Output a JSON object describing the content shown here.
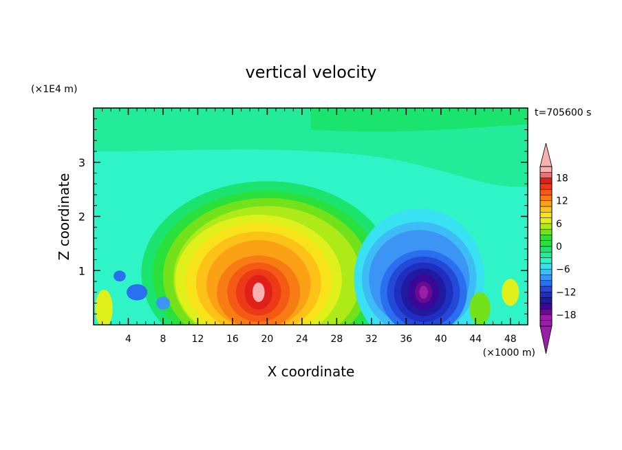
{
  "chart_data": {
    "type": "heatmap",
    "title": "vertical velocity",
    "xlabel": "X coordinate",
    "ylabel": "Z coordinate",
    "x_unit": "(×1000 m)",
    "y_unit": "(×1E4 m)",
    "time_label": "t=705600 s",
    "xlim": [
      0,
      50
    ],
    "ylim": [
      0,
      4
    ],
    "x_ticks": [
      "4",
      "8",
      "12",
      "16",
      "20",
      "24",
      "28",
      "32",
      "36",
      "40",
      "44",
      "48"
    ],
    "y_ticks": [
      "1",
      "2",
      "3"
    ],
    "colorbar": {
      "levels": [
        -21,
        -19.5,
        -18,
        -16.5,
        -15,
        -13.5,
        -12,
        -10.5,
        -9,
        -7.5,
        -6,
        -4.5,
        -3,
        -1.5,
        0,
        1.5,
        3,
        4.5,
        6,
        7.5,
        9,
        10.5,
        12,
        13.5,
        15,
        16.5,
        18,
        19.5,
        21
      ],
      "tick_labels": [
        "18",
        "12",
        "6",
        "0",
        "−6",
        "−12",
        "−18"
      ],
      "tick_values": [
        18,
        12,
        6,
        0,
        -6,
        -12,
        -18
      ]
    },
    "features": [
      {
        "kind": "updraft",
        "center_x": 19,
        "center_z": 0.6,
        "max_value": 20
      },
      {
        "kind": "downdraft",
        "center_x": 38,
        "center_z": 0.55,
        "min_value": -19
      }
    ],
    "grid": false,
    "legend": "colorbar-right"
  }
}
